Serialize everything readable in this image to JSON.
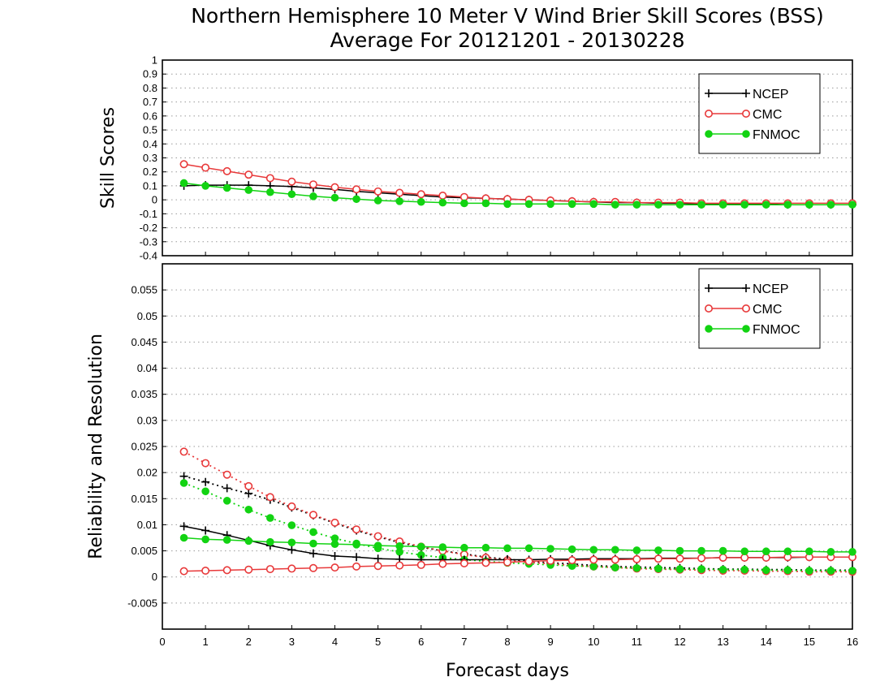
{
  "title_line1": "Northern Hemisphere 10 Meter V Wind Brier Skill Scores (BSS)",
  "title_line2": "Average For 20121201 - 20130228",
  "xlabel": "Forecast days",
  "colors": {
    "NCEP": "#000000",
    "CMC": "#e8393a",
    "FNMOC": "#12d312",
    "grid": "#9a9a9a"
  },
  "chart_data": [
    {
      "type": "line",
      "ylabel": "Skill Scores",
      "xlim": [
        0,
        16
      ],
      "ylim": [
        -0.4,
        1
      ],
      "xticks": [
        0,
        1,
        2,
        3,
        4,
        5,
        6,
        7,
        8,
        9,
        10,
        11,
        12,
        13,
        14,
        15,
        16
      ],
      "yticks": [
        -0.4,
        -0.3,
        -0.2,
        -0.1,
        0,
        0.1,
        0.2,
        0.3,
        0.4,
        0.5,
        0.6,
        0.7,
        0.8,
        0.9,
        1
      ],
      "ytick_labels": [
        "-0.4",
        "-0.3",
        "-0.2",
        "-0.1",
        "0",
        "0.1",
        "0.2",
        "0.3",
        "0.4",
        "0.5",
        "0.6",
        "0.7",
        "0.8",
        "0.9",
        "1"
      ],
      "grid": true,
      "legend": "top-right",
      "x": [
        0.5,
        1,
        1.5,
        2,
        2.5,
        3,
        3.5,
        4,
        4.5,
        5,
        5.5,
        6,
        6.5,
        7,
        7.5,
        8,
        8.5,
        9,
        9.5,
        10,
        10.5,
        11,
        11.5,
        12,
        12.5,
        13,
        13.5,
        14,
        14.5,
        15,
        15.5,
        16
      ],
      "series": [
        {
          "name": "NCEP",
          "marker": "plus",
          "dash": "solid",
          "values": [
            0.1,
            0.105,
            0.105,
            0.105,
            0.1,
            0.095,
            0.085,
            0.075,
            0.06,
            0.05,
            0.04,
            0.03,
            0.02,
            0.015,
            0.01,
            0.005,
            0,
            -0.005,
            -0.01,
            -0.015,
            -0.02,
            -0.02,
            -0.025,
            -0.025,
            -0.03,
            -0.03,
            -0.03,
            -0.03,
            -0.035,
            -0.035,
            -0.035,
            -0.035
          ]
        },
        {
          "name": "CMC",
          "marker": "open-circle",
          "dash": "solid",
          "values": [
            0.255,
            0.23,
            0.205,
            0.18,
            0.155,
            0.13,
            0.11,
            0.09,
            0.075,
            0.06,
            0.05,
            0.04,
            0.03,
            0.02,
            0.01,
            0.005,
            0,
            -0.005,
            -0.01,
            -0.015,
            -0.015,
            -0.02,
            -0.02,
            -0.02,
            -0.025,
            -0.025,
            -0.025,
            -0.025,
            -0.025,
            -0.025,
            -0.025,
            -0.025
          ]
        },
        {
          "name": "FNMOC",
          "marker": "filled-circle",
          "dash": "solid",
          "values": [
            0.12,
            0.1,
            0.085,
            0.07,
            0.055,
            0.04,
            0.025,
            0.015,
            0.005,
            -0.005,
            -0.01,
            -0.015,
            -0.02,
            -0.025,
            -0.025,
            -0.03,
            -0.03,
            -0.03,
            -0.03,
            -0.03,
            -0.035,
            -0.035,
            -0.035,
            -0.035,
            -0.035,
            -0.035,
            -0.035,
            -0.035,
            -0.035,
            -0.035,
            -0.035,
            -0.035
          ]
        }
      ]
    },
    {
      "type": "line",
      "ylabel": "Reliability and Resolution",
      "xlim": [
        0,
        16
      ],
      "ylim": [
        -0.01,
        0.06
      ],
      "xticks": [
        0,
        1,
        2,
        3,
        4,
        5,
        6,
        7,
        8,
        9,
        10,
        11,
        12,
        13,
        14,
        15,
        16
      ],
      "xtick_labels": [
        "0",
        "1",
        "2",
        "3",
        "4",
        "5",
        "6",
        "7",
        "8",
        "9",
        "10",
        "11",
        "12",
        "13",
        "14",
        "15",
        "16"
      ],
      "yticks": [
        -0.005,
        0,
        0.005,
        0.01,
        0.015,
        0.02,
        0.025,
        0.03,
        0.035,
        0.04,
        0.045,
        0.05,
        0.055
      ],
      "ytick_labels": [
        "-0.005",
        "0",
        "0.005",
        "0.01",
        "0.015",
        "0.02",
        "0.025",
        "0.03",
        "0.035",
        "0.04",
        "0.045",
        "0.05",
        "0.055"
      ],
      "grid": true,
      "legend": "top-right",
      "x": [
        0.5,
        1,
        1.5,
        2,
        2.5,
        3,
        3.5,
        4,
        4.5,
        5,
        5.5,
        6,
        6.5,
        7,
        7.5,
        8,
        8.5,
        9,
        9.5,
        10,
        10.5,
        11,
        11.5,
        12,
        12.5,
        13,
        13.5,
        14,
        14.5,
        15,
        15.5,
        16
      ],
      "series": [
        {
          "name": "NCEP",
          "marker": "plus",
          "dash": "dotted",
          "values": [
            0.0193,
            0.0182,
            0.017,
            0.016,
            0.0148,
            0.0133,
            0.0118,
            0.0103,
            0.0089,
            0.0077,
            0.0066,
            0.0057,
            0.005,
            0.0044,
            0.0038,
            0.0034,
            0.003,
            0.0027,
            0.0025,
            0.0022,
            0.002,
            0.0019,
            0.0018,
            0.0017,
            0.0016,
            0.0015,
            0.0015,
            0.0014,
            0.0014,
            0.0013,
            0.0013,
            0.0013
          ]
        },
        {
          "name": "CMC",
          "marker": "open-circle",
          "dash": "dotted",
          "values": [
            0.024,
            0.0218,
            0.0196,
            0.0174,
            0.0153,
            0.0135,
            0.0119,
            0.0104,
            0.0091,
            0.0078,
            0.0068,
            0.0058,
            0.005,
            0.0043,
            0.0037,
            0.0032,
            0.0028,
            0.0025,
            0.0022,
            0.002,
            0.0018,
            0.0016,
            0.0015,
            0.0014,
            0.0013,
            0.0012,
            0.0012,
            0.0011,
            0.0011,
            0.001,
            0.001,
            0.001
          ]
        },
        {
          "name": "FNMOC",
          "marker": "filled-circle",
          "dash": "dotted",
          "values": [
            0.018,
            0.0164,
            0.0146,
            0.0129,
            0.0113,
            0.0099,
            0.0086,
            0.0074,
            0.0064,
            0.0055,
            0.0048,
            0.0042,
            0.0037,
            0.0033,
            0.003,
            0.0027,
            0.0025,
            0.0023,
            0.0021,
            0.002,
            0.0018,
            0.0017,
            0.0016,
            0.0015,
            0.0015,
            0.0014,
            0.0014,
            0.0013,
            0.0013,
            0.0012,
            0.0012,
            0.0012
          ]
        },
        {
          "name": "NCEP",
          "marker": "plus",
          "dash": "solid",
          "values": [
            0.0097,
            0.0089,
            0.008,
            0.007,
            0.006,
            0.0052,
            0.0045,
            0.004,
            0.0038,
            0.0035,
            0.0034,
            0.0033,
            0.0033,
            0.0033,
            0.0033,
            0.0033,
            0.0033,
            0.0034,
            0.0034,
            0.0035,
            0.0035,
            0.0035,
            0.0036,
            0.0036,
            0.0036,
            0.0037,
            0.0037,
            0.0037,
            0.0037,
            0.0038,
            0.0038,
            0.0038
          ]
        },
        {
          "name": "CMC",
          "marker": "open-circle",
          "dash": "solid",
          "values": [
            0.0011,
            0.0012,
            0.0013,
            0.0014,
            0.0015,
            0.0016,
            0.0017,
            0.0018,
            0.002,
            0.0021,
            0.0022,
            0.0023,
            0.0025,
            0.0026,
            0.0027,
            0.0028,
            0.003,
            0.0031,
            0.0032,
            0.0033,
            0.0033,
            0.0034,
            0.0035,
            0.0035,
            0.0036,
            0.0037,
            0.0037,
            0.0037,
            0.0038,
            0.0038,
            0.0038,
            0.0038
          ]
        },
        {
          "name": "FNMOC",
          "marker": "filled-circle",
          "dash": "solid",
          "values": [
            0.0075,
            0.0072,
            0.0071,
            0.0069,
            0.0067,
            0.0066,
            0.0064,
            0.0063,
            0.0062,
            0.006,
            0.0059,
            0.0058,
            0.0057,
            0.0056,
            0.0056,
            0.0055,
            0.0055,
            0.0054,
            0.0053,
            0.0052,
            0.0052,
            0.0051,
            0.0051,
            0.005,
            0.005,
            0.005,
            0.0049,
            0.0049,
            0.0049,
            0.0049,
            0.0048,
            0.0048
          ]
        }
      ],
      "legend_entries": [
        "NCEP",
        "CMC",
        "FNMOC"
      ]
    }
  ]
}
